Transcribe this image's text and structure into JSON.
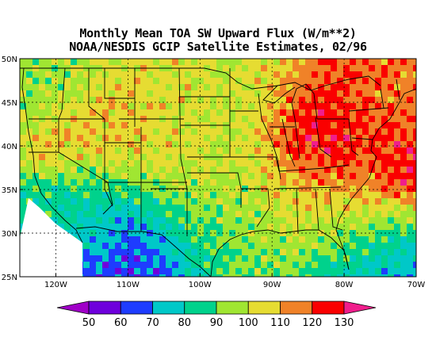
{
  "title": {
    "line1": "Monthly Mean TOA SW Upward Flux (W/m**2)",
    "line2": "NOAA/NESDIS GCIP Satellite Estimates, 02/96"
  },
  "axes": {
    "lat_ticks": [
      {
        "value": 50,
        "label": "50N"
      },
      {
        "value": 45,
        "label": "45N"
      },
      {
        "value": 40,
        "label": "40N"
      },
      {
        "value": 35,
        "label": "35N"
      },
      {
        "value": 30,
        "label": "30N"
      },
      {
        "value": 25,
        "label": "25N"
      }
    ],
    "lon_ticks": [
      {
        "value": -120,
        "label": "120W"
      },
      {
        "value": -110,
        "label": "110W"
      },
      {
        "value": -100,
        "label": "100W"
      },
      {
        "value": -90,
        "label": "90W"
      },
      {
        "value": -80,
        "label": "80W"
      },
      {
        "value": -70,
        "label": "70W"
      }
    ],
    "lon_range": [
      -125,
      -70
    ],
    "lat_range": [
      25,
      50
    ]
  },
  "colorbar": {
    "labels": [
      "50",
      "60",
      "70",
      "80",
      "90",
      "100",
      "110",
      "120",
      "130"
    ],
    "colors": [
      "#a000c8",
      "#6e00dc",
      "#1e3cff",
      "#00c8c8",
      "#00d28c",
      "#a0e632",
      "#e6dc32",
      "#f08228",
      "#fa0000",
      "#f01e8c"
    ]
  }
}
